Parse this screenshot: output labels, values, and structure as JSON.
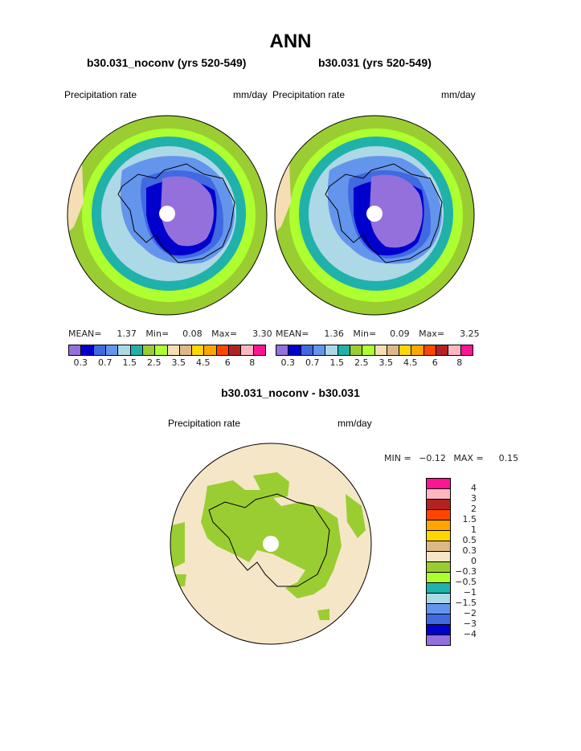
{
  "title": "ANN",
  "left_panel": {
    "case": "b30.031_noconv (yrs 520-549)",
    "variable": "Precipitation rate",
    "units": "mm/day",
    "stats": {
      "mean_label": "MEAN=",
      "mean": "1.37",
      "min_label": "Min=",
      "min": "0.08",
      "max_label": "Max=",
      "max": "3.30"
    }
  },
  "right_panel": {
    "case": "b30.031 (yrs 520-549)",
    "variable": "Precipitation rate",
    "units": "mm/day",
    "stats": {
      "mean_label": "MEAN=",
      "mean": "1.36",
      "min_label": "Min=",
      "min": "0.09",
      "max_label": "Max=",
      "max": "3.25"
    }
  },
  "diff_panel": {
    "case": "b30.031_noconv - b30.031",
    "variable": "Precipitation rate",
    "units": "mm/day",
    "stats": {
      "min_label": "MIN =",
      "min": "−0.12",
      "max_label": "MAX =",
      "max": "0.15"
    }
  },
  "colorbar_top": {
    "colors": [
      "#9370db",
      "#0000cd",
      "#4169e1",
      "#6495ed",
      "#add8e6",
      "#20b2aa",
      "#9acd32",
      "#adff2f",
      "#f5deb3",
      "#deb887",
      "#ffd700",
      "#ffa500",
      "#ff4500",
      "#b22222",
      "#ffb6c1",
      "#ff1493"
    ],
    "tick_labels": [
      "0.3",
      "0.7",
      "1.5",
      "2.5",
      "3.5",
      "4.5",
      "6",
      "8"
    ]
  },
  "colorbar_diff": {
    "colors": [
      "#ff1493",
      "#ffb6c1",
      "#b22222",
      "#ff4500",
      "#ffa500",
      "#ffd700",
      "#deb887",
      "#f5e6c8",
      "#9acd32",
      "#adff2f",
      "#20b2aa",
      "#add8e6",
      "#6495ed",
      "#4169e1",
      "#0000cd",
      "#9370db"
    ],
    "tick_labels": [
      "4",
      "3",
      "2",
      "1.5",
      "1",
      "0.5",
      "0.3",
      "0",
      "−0.3",
      "−0.5",
      "−1",
      "−1.5",
      "−2",
      "−3",
      "−4"
    ]
  }
}
